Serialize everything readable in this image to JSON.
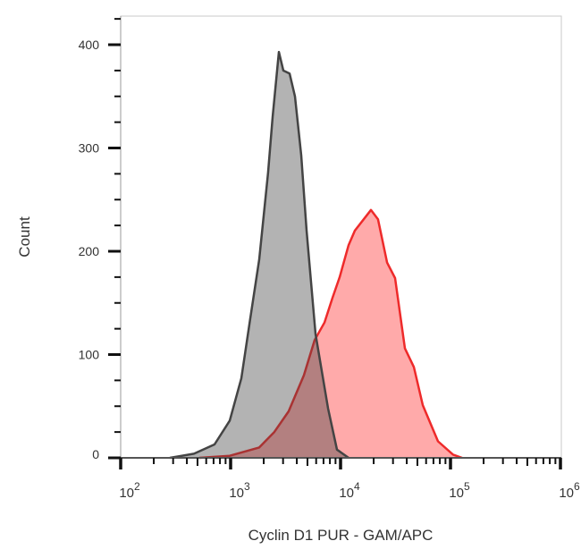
{
  "chart_data": {
    "type": "area",
    "title": "",
    "xlabel": "Cyclin D1 PUR - GAM/APC",
    "ylabel": "Count",
    "xscale": "log",
    "xlim": [
      100,
      1000000
    ],
    "ylim": [
      0,
      425
    ],
    "grid": false,
    "legend": "none",
    "x_ticks": [
      {
        "base": "10",
        "exp": "2",
        "value": 100
      },
      {
        "base": "10",
        "exp": "3",
        "value": 1000
      },
      {
        "base": "10",
        "exp": "4",
        "value": 10000
      },
      {
        "base": "10",
        "exp": "5",
        "value": 100000
      },
      {
        "base": "10",
        "exp": "6",
        "value": 1000000
      }
    ],
    "y_ticks": [
      "0",
      "100",
      "200",
      "300",
      "400"
    ],
    "series": [
      {
        "color": "#444444",
        "fill": "#b3b3b3",
        "points": [
          [
            280,
            0
          ],
          [
            464,
            4
          ],
          [
            714,
            13
          ],
          [
            982,
            36
          ],
          [
            1253,
            77
          ],
          [
            1511,
            135
          ],
          [
            1820,
            192
          ],
          [
            2193,
            276
          ],
          [
            2410,
            330
          ],
          [
            2750,
            393
          ],
          [
            3020,
            375
          ],
          [
            3440,
            372
          ],
          [
            3850,
            350
          ],
          [
            4390,
            293
          ],
          [
            4910,
            220
          ],
          [
            5920,
            120
          ],
          [
            7690,
            48
          ],
          [
            9270,
            8
          ],
          [
            11830,
            0
          ]
        ]
      },
      {
        "color": "#ee2a2a",
        "fill": "#ffaaaa",
        "points": [
          [
            519,
            0
          ],
          [
            982,
            2
          ],
          [
            1820,
            10
          ],
          [
            2500,
            25
          ],
          [
            3370,
            45
          ],
          [
            4640,
            80
          ],
          [
            5810,
            114
          ],
          [
            7140,
            131
          ],
          [
            8450,
            155
          ],
          [
            9820,
            175
          ],
          [
            11830,
            206
          ],
          [
            13490,
            220
          ],
          [
            18900,
            240
          ],
          [
            21900,
            231
          ],
          [
            26500,
            189
          ],
          [
            31300,
            174
          ],
          [
            38500,
            106
          ],
          [
            46400,
            88
          ],
          [
            56000,
            51
          ],
          [
            76900,
            16
          ],
          [
            105700,
            3
          ],
          [
            127600,
            0
          ]
        ]
      }
    ]
  }
}
